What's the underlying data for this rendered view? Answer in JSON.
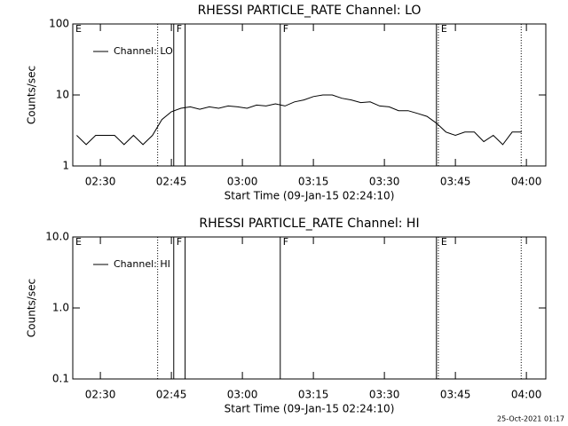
{
  "chart_data": [
    {
      "type": "line",
      "title": "RHESSI PARTICLE_RATE Channel: LO",
      "xlabel": "Start Time (09-Jan-15 02:24:10)",
      "ylabel": "Counts/sec",
      "log_y": true,
      "ylim": [
        1,
        100
      ],
      "yticks": [
        1,
        10,
        100
      ],
      "xlim": [
        144.17,
        244.1
      ],
      "xticks": [
        {
          "value": 150,
          "label": "02:30"
        },
        {
          "value": 165,
          "label": "02:45"
        },
        {
          "value": 180,
          "label": "03:00"
        },
        {
          "value": 195,
          "label": "03:15"
        },
        {
          "value": 210,
          "label": "03:30"
        },
        {
          "value": 225,
          "label": "03:45"
        },
        {
          "value": 240,
          "label": "04:00"
        }
      ],
      "vlines": [
        {
          "x": 162.1,
          "style": "dotted"
        },
        {
          "x": 165.5,
          "style": "solid"
        },
        {
          "x": 167.9,
          "style": "solid"
        },
        {
          "x": 188.0,
          "style": "solid"
        },
        {
          "x": 221.0,
          "style": "solid"
        },
        {
          "x": 221.4,
          "style": "dotted"
        },
        {
          "x": 238.9,
          "style": "dotted"
        }
      ],
      "flags": [
        {
          "x": 144.17,
          "label": "E"
        },
        {
          "x": 165.5,
          "label": "F"
        },
        {
          "x": 188.0,
          "label": "F"
        },
        {
          "x": 221.4,
          "label": "E"
        }
      ],
      "legend": "upper left",
      "series": [
        {
          "name": "Channel: LO",
          "color": "#000000",
          "x": [
            145,
            147,
            149,
            151,
            153,
            155,
            157,
            159,
            161,
            163,
            165,
            167,
            169,
            171,
            173,
            175,
            177,
            179,
            181,
            183,
            185,
            187,
            189,
            191,
            193,
            195,
            197,
            199,
            201,
            203,
            205,
            207,
            209,
            211,
            213,
            215,
            217,
            219,
            221,
            223,
            225,
            227,
            229,
            231,
            233,
            235,
            237,
            239
          ],
          "values": [
            2.7,
            2,
            2.7,
            2.7,
            2.7,
            2,
            2.7,
            2,
            2.7,
            4.5,
            5.8,
            6.5,
            6.8,
            6.3,
            6.8,
            6.5,
            7,
            6.8,
            6.5,
            7.2,
            7,
            7.5,
            7,
            8,
            8.5,
            9.5,
            10,
            10,
            9,
            8.5,
            7.8,
            8,
            7,
            6.8,
            6,
            6,
            5.5,
            5,
            4,
            3,
            2.7,
            3,
            3,
            2.2,
            2.7,
            2,
            3,
            3
          ]
        }
      ]
    },
    {
      "type": "line",
      "title": "RHESSI PARTICLE_RATE Channel: HI",
      "xlabel": "Start Time (09-Jan-15 02:24:10)",
      "ylabel": "Counts/sec",
      "log_y": true,
      "ylim": [
        0.1,
        10
      ],
      "yticks": [
        0.1,
        {
          "value": 1,
          "label": "1.0"
        },
        {
          "value": 10,
          "label": "10.0"
        }
      ],
      "xlim": [
        144.17,
        244.1
      ],
      "xticks": [
        {
          "value": 150,
          "label": "02:30"
        },
        {
          "value": 165,
          "label": "02:45"
        },
        {
          "value": 180,
          "label": "03:00"
        },
        {
          "value": 195,
          "label": "03:15"
        },
        {
          "value": 210,
          "label": "03:30"
        },
        {
          "value": 225,
          "label": "03:45"
        },
        {
          "value": 240,
          "label": "04:00"
        }
      ],
      "vlines": [
        {
          "x": 162.1,
          "style": "dotted"
        },
        {
          "x": 165.5,
          "style": "solid"
        },
        {
          "x": 167.9,
          "style": "solid"
        },
        {
          "x": 188.0,
          "style": "solid"
        },
        {
          "x": 221.0,
          "style": "solid"
        },
        {
          "x": 221.4,
          "style": "dotted"
        },
        {
          "x": 238.9,
          "style": "dotted"
        }
      ],
      "flags": [
        {
          "x": 144.17,
          "label": "E"
        },
        {
          "x": 165.5,
          "label": "F"
        },
        {
          "x": 188.0,
          "label": "F"
        },
        {
          "x": 221.4,
          "label": "E"
        }
      ],
      "legend": "upper left",
      "series": [
        {
          "name": "Channel: HI",
          "color": "#000000",
          "x": [],
          "values": []
        }
      ]
    }
  ],
  "footer": "25-Oct-2021 01:17"
}
